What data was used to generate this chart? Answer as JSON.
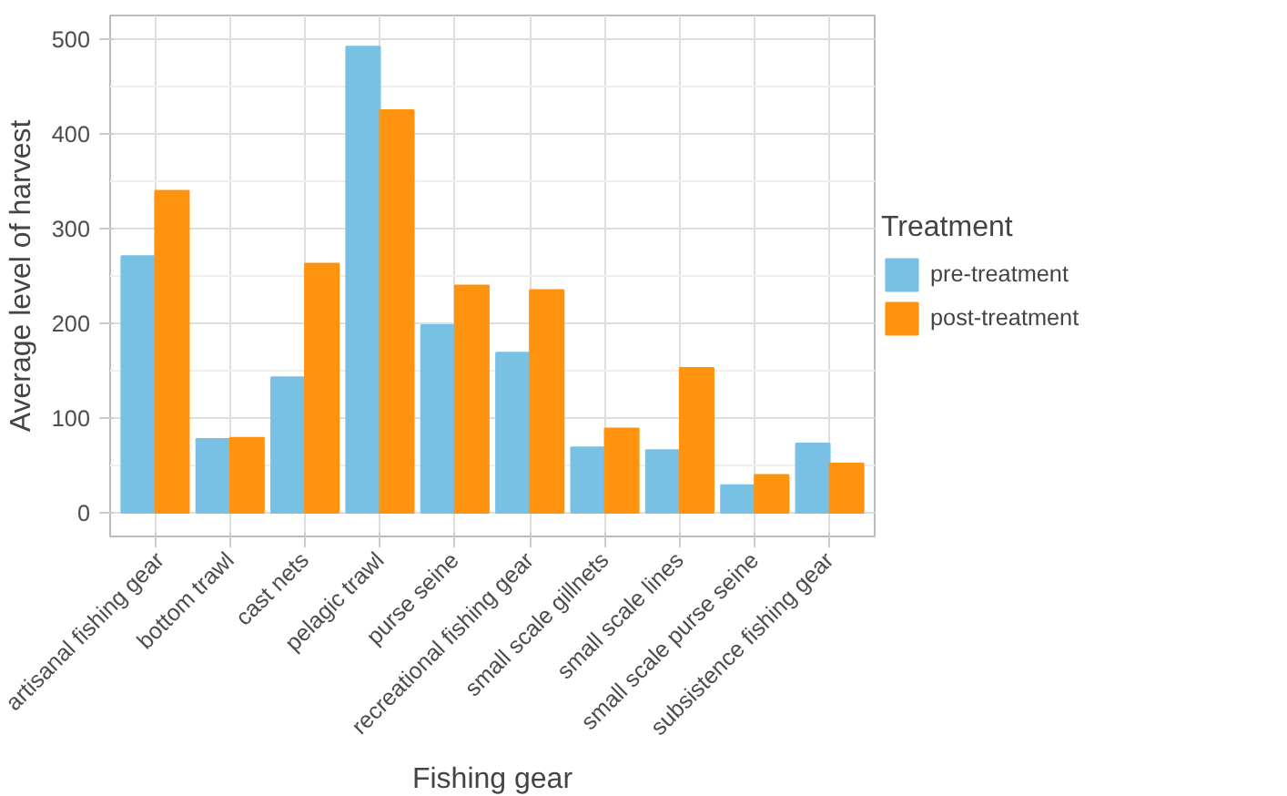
{
  "chart_data": {
    "type": "bar",
    "xlabel": "Fishing gear",
    "ylabel": "Average level of harvest",
    "legend_title": "Treatment",
    "categories": [
      "artisanal fishing gear",
      "bottom trawl",
      "cast nets",
      "pelagic trawl",
      "purse seine",
      "recreational fishing gear",
      "small scale gillnets",
      "small scale lines",
      "small scale purse seine",
      "subsistence fishing gear"
    ],
    "series": [
      {
        "name": "pre-treatment",
        "color": "#78c1e4",
        "values": [
          271,
          78,
          143,
          492,
          198,
          169,
          69,
          66,
          29,
          73
        ]
      },
      {
        "name": "post-treatment",
        "color": "#ff930f",
        "values": [
          340,
          79,
          263,
          425,
          240,
          235,
          89,
          153,
          40,
          52
        ]
      }
    ],
    "ylim": [
      -25,
      525
    ],
    "yticks": [
      0,
      100,
      200,
      300,
      400,
      500
    ],
    "grid": true,
    "legend": "right"
  }
}
